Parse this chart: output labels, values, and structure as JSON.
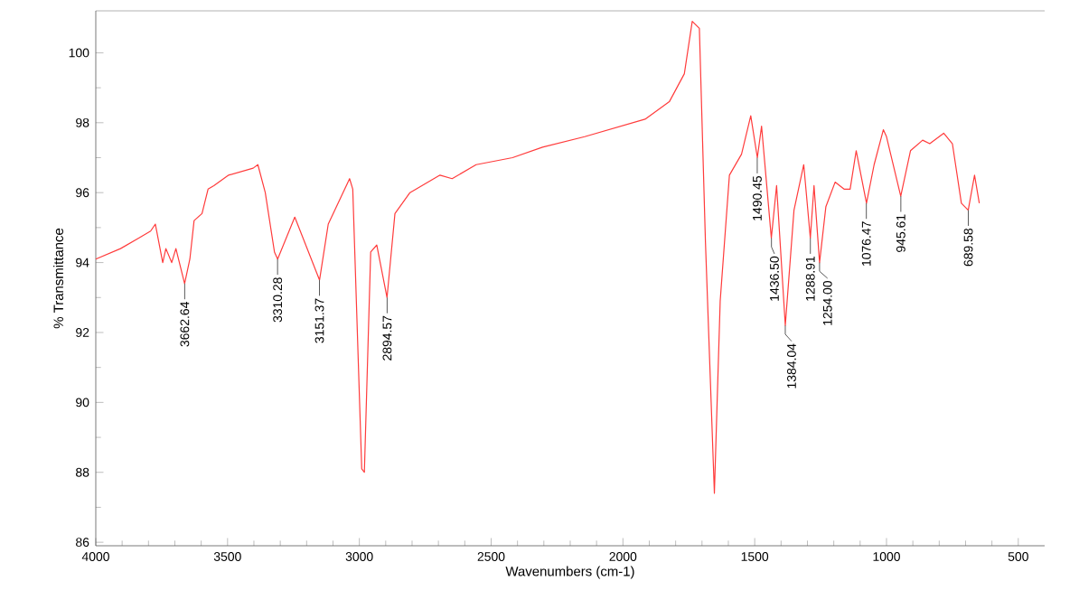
{
  "chart_data": {
    "type": "line",
    "xlabel": "Wavenumbers (cm-1)",
    "ylabel": "% Transmittance",
    "xlim": [
      4000,
      400
    ],
    "ylim": [
      85.9,
      101.2
    ],
    "xticks": [
      4000,
      3500,
      3000,
      2500,
      2000,
      1500,
      1000,
      500
    ],
    "yticks": [
      86,
      88,
      90,
      92,
      94,
      96,
      98,
      100
    ],
    "marker": "none",
    "line_style": "solid",
    "series": [
      {
        "color": "#ff3b3b",
        "x": [
          4000,
          3906,
          3837,
          3792,
          3774,
          3746,
          3734,
          3712,
          3696,
          3663,
          3643,
          3627,
          3597,
          3574,
          3552,
          3496,
          3403,
          3385,
          3357,
          3322,
          3310,
          3245,
          3151,
          3118,
          3037,
          3025,
          2991,
          2981,
          2957,
          2934,
          2895,
          2865,
          2808,
          2694,
          2648,
          2557,
          2419,
          2305,
          2145,
          1916,
          1824,
          1767,
          1737,
          1710,
          1687,
          1653,
          1631,
          1596,
          1550,
          1515,
          1490,
          1474,
          1437,
          1417,
          1384,
          1351,
          1314,
          1289,
          1275,
          1254,
          1230,
          1195,
          1161,
          1138,
          1115,
          1076,
          1047,
          1012,
          1000,
          946,
          909,
          863,
          836,
          783,
          750,
          716,
          690,
          666,
          648
        ],
        "values": [
          94.1,
          94.4,
          94.7,
          94.9,
          95.1,
          94.0,
          94.4,
          94.0,
          94.4,
          93.4,
          94.1,
          95.2,
          95.4,
          96.1,
          96.2,
          96.5,
          96.7,
          96.8,
          96.0,
          94.3,
          94.1,
          95.3,
          93.5,
          95.1,
          96.4,
          96.1,
          88.1,
          88.0,
          94.3,
          94.5,
          93.0,
          95.4,
          96.0,
          96.5,
          96.4,
          96.8,
          97.0,
          97.3,
          97.6,
          98.1,
          98.6,
          99.4,
          100.9,
          100.7,
          94.6,
          87.4,
          92.9,
          96.5,
          97.1,
          98.2,
          97.0,
          97.9,
          94.7,
          96.2,
          92.2,
          95.5,
          96.8,
          94.7,
          96.2,
          94.0,
          95.6,
          96.3,
          96.1,
          96.1,
          97.2,
          95.7,
          96.8,
          97.8,
          97.6,
          95.9,
          97.2,
          97.5,
          97.4,
          97.7,
          97.4,
          95.7,
          95.5,
          96.5,
          95.7
        ]
      }
    ],
    "annotations": [
      {
        "text": "3662.64",
        "x": 3662.64,
        "y": 93.4
      },
      {
        "text": "3310.28",
        "x": 3310.28,
        "y": 94.1
      },
      {
        "text": "3151.37",
        "x": 3151.37,
        "y": 93.5
      },
      {
        "text": "2894.57",
        "x": 2894.57,
        "y": 93.0
      },
      {
        "text": "1490.45",
        "x": 1490.45,
        "y": 97.0
      },
      {
        "text": "1436.50",
        "x": 1436.5,
        "y": 94.7
      },
      {
        "text": "1384.04",
        "x": 1384.04,
        "y": 92.2
      },
      {
        "text": "1288.91",
        "x": 1288.91,
        "y": 94.7
      },
      {
        "text": "1254.00",
        "x": 1254.0,
        "y": 94.0
      },
      {
        "text": "1076.47",
        "x": 1076.47,
        "y": 95.7
      },
      {
        "text": "945.61",
        "x": 945.61,
        "y": 95.9
      },
      {
        "text": "689.58",
        "x": 689.58,
        "y": 95.5
      }
    ]
  }
}
